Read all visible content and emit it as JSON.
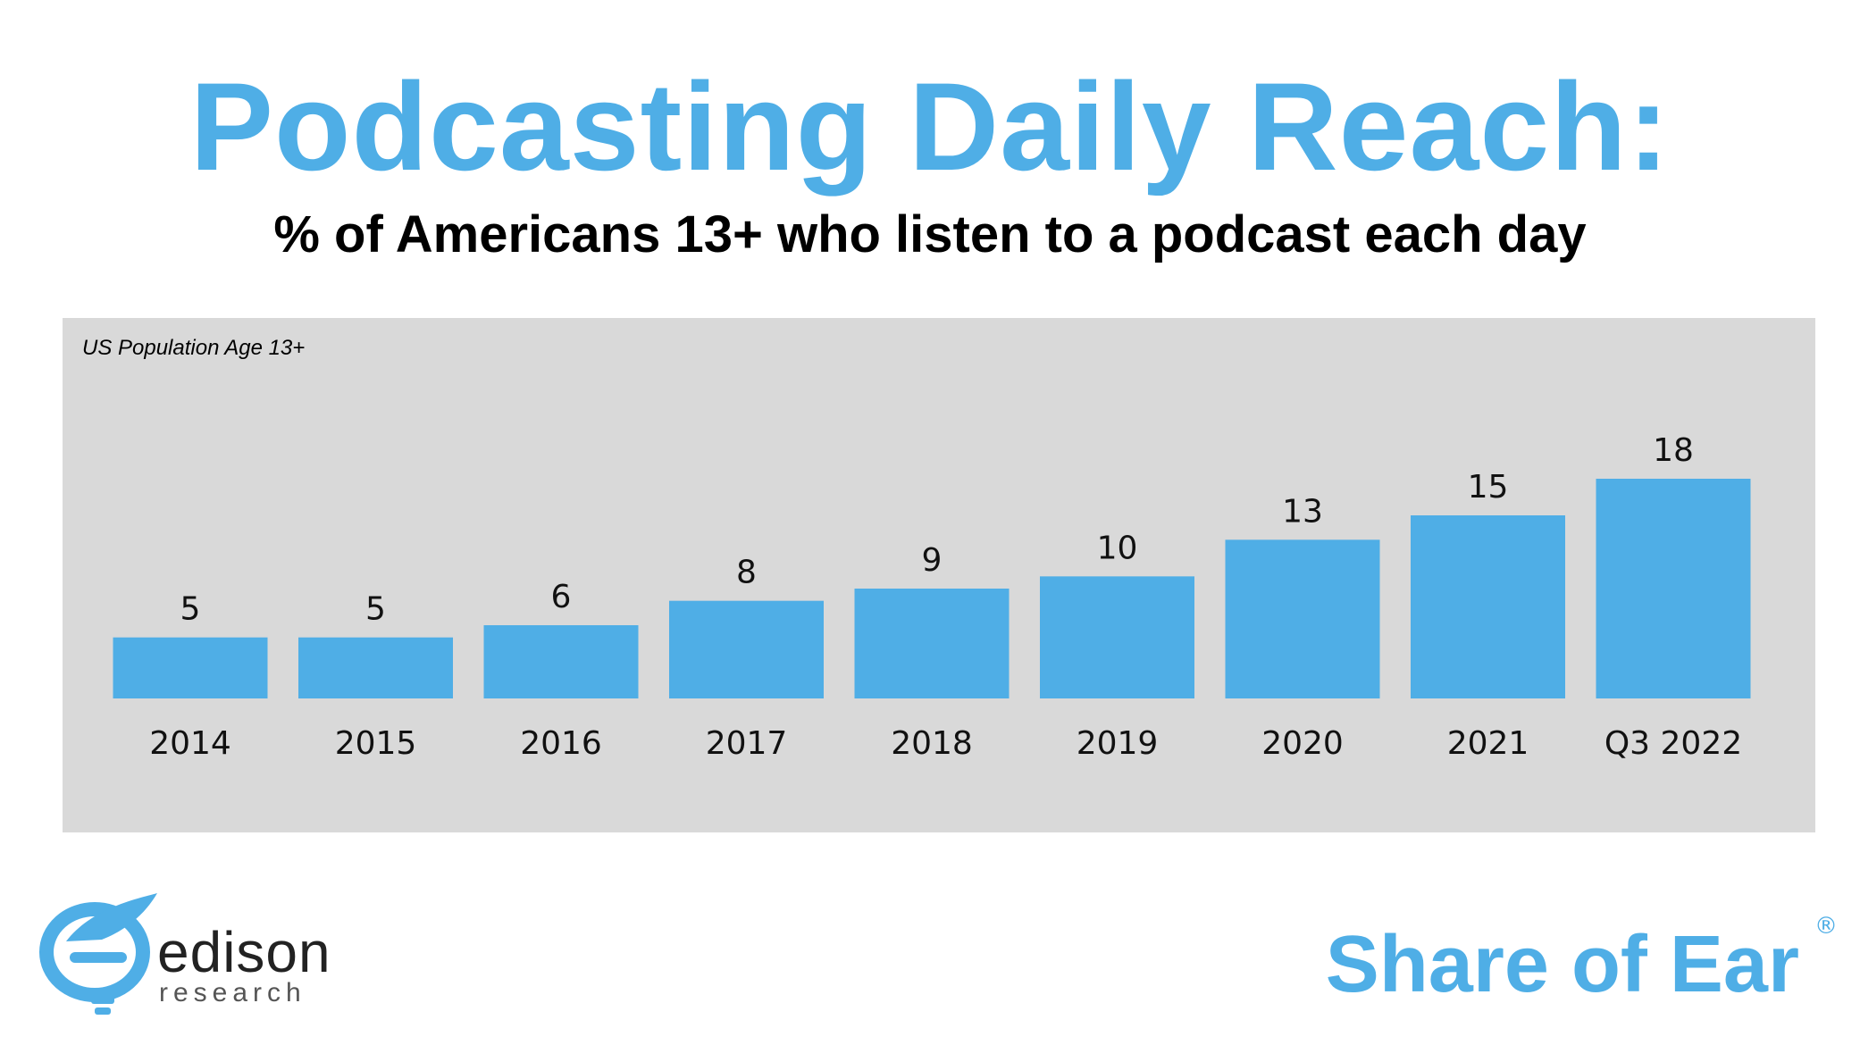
{
  "header": {
    "title": "Podcasting Daily Reach:",
    "subtitle": "% of Americans 13+ who listen to a podcast each day"
  },
  "panel": {
    "note": "US Population Age 13+"
  },
  "colors": {
    "accent": "#4faee6",
    "panel_bg": "#d9d9d9"
  },
  "chart_data": {
    "type": "bar",
    "title": "Podcasting Daily Reach:",
    "subtitle": "% of Americans 13+ who listen to a podcast each day",
    "categories": [
      "2014",
      "2015",
      "2016",
      "2017",
      "2018",
      "2019",
      "2020",
      "2021",
      "Q3 2022"
    ],
    "values": [
      5,
      5,
      6,
      8,
      9,
      10,
      13,
      15,
      18
    ],
    "ylim": [
      0,
      18
    ],
    "grid": false,
    "legend": "none",
    "data_labels": true
  },
  "logos": {
    "left_word": "edison",
    "left_sub": "research",
    "right_brand": "Share of Ear",
    "right_mark": "®"
  }
}
